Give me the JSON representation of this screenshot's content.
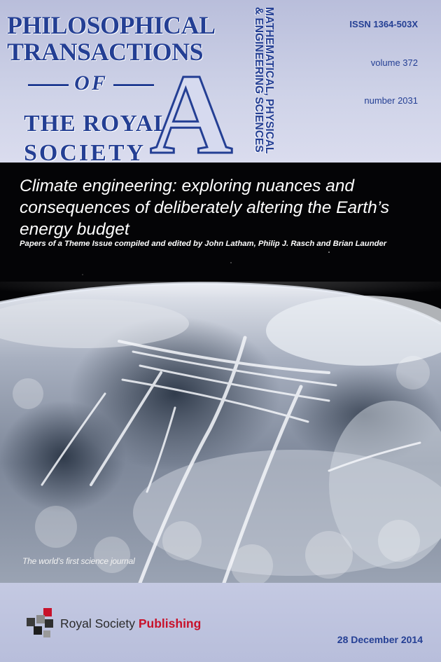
{
  "journal": {
    "line1": "PHILOSOPHICAL",
    "line2": "TRANSACTIONS",
    "line3": "OF",
    "line4": "THE ROYAL",
    "line5": "SOCIETY",
    "series_letter": "A",
    "subject_line1": "MATHEMATICAL, PHYSICAL",
    "subject_line2": "& ENGINEERING SCIENCES"
  },
  "meta": {
    "issn": "ISSN 1364-503X",
    "volume": "volume 372",
    "number": "number 2031",
    "date": "28 December 2014"
  },
  "theme": {
    "title_line1": "Climate engineering: exploring nuances and",
    "title_line2": "consequences of deliberately altering the Earth’s",
    "title_line3": "energy budget",
    "subtitle": "Papers of a Theme Issue compiled and edited by John Latham, Philip J. Rasch and Brian Launder"
  },
  "tagline": "The world’s first science journal",
  "publisher": {
    "name_regular": "Royal Society",
    "name_bold": "Publishing",
    "logo_icon": "royal-society-cubes-logo"
  },
  "colors": {
    "title_blue": "#243f94",
    "publisher_red": "#c8122b",
    "space_black": "#040406"
  }
}
